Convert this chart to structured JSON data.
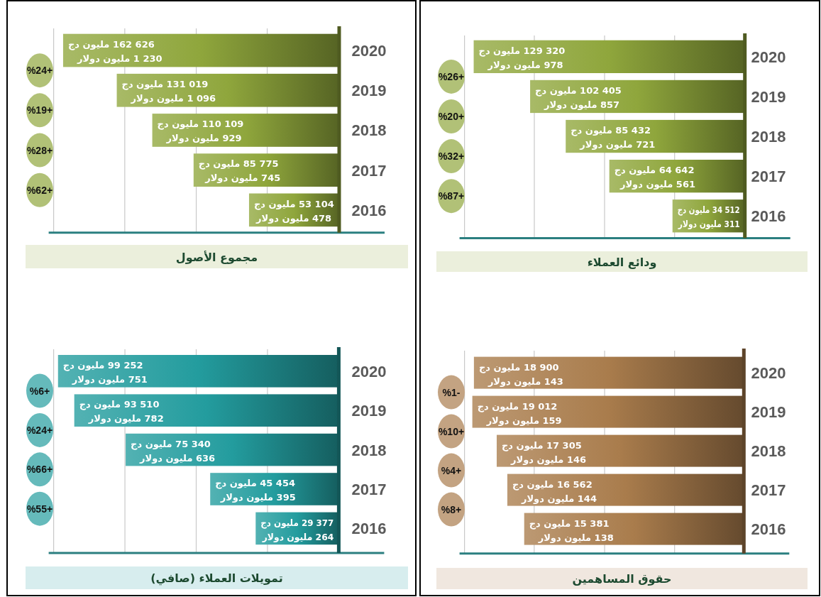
{
  "chart_data": [
    {
      "type": "bar",
      "orientation": "horizontal",
      "title": "مجموع الأصول",
      "categories": [
        "2020",
        "2019",
        "2018",
        "2017",
        "2016"
      ],
      "xlim": [
        168200,
        0
      ],
      "xticks": [
        {
          "value": 168200,
          "label": null
        },
        {
          "value": 126300,
          "label": null
        },
        {
          "value": 84200,
          "label": null
        },
        {
          "value": 42400,
          "label": null
        }
      ],
      "grid": "x",
      "tick_labels": "y",
      "series": [
        {
          "color": "#8fa63c",
          "values": [
            162626,
            131019,
            110109,
            85775,
            53104
          ],
          "value_labels": [
            "162 626 مليون دج",
            "131 019 مليون دج",
            "110 109 مليون دج",
            "85 775 مليون دج",
            "53 104 مليون دج"
          ]
        }
      ],
      "annotations": [
        "%24+",
        "%19+",
        "%28+",
        "%62+",
        {
          "text": "1 230 مليون دولار",
          "x": 162626,
          "y": "2020"
        },
        {
          "text": "1 096 مليون دولار",
          "x": 131019,
          "y": "2019"
        },
        {
          "text": "929 مليون دولار",
          "x": 110109,
          "y": "2018"
        },
        {
          "text": "745 مليون دولار",
          "x": 85775,
          "y": "2017"
        },
        {
          "text": "478 مليون دولار",
          "x": 53104,
          "y": "2016"
        }
      ]
    },
    {
      "type": "bar",
      "orientation": "horizontal",
      "title": "ودائع العملاء",
      "categories": [
        "2020",
        "2019",
        "2018",
        "2017",
        "2016"
      ],
      "xlim": [
        133700,
        0
      ],
      "xticks": [
        {
          "value": 133700,
          "label": null
        },
        {
          "value": 100400,
          "label": null
        },
        {
          "value": 66900,
          "label": null
        },
        {
          "value": 33500,
          "label": null
        }
      ],
      "grid": "x",
      "tick_labels": "y",
      "series": [
        {
          "color": "#8fa63c",
          "values": [
            129320,
            102405,
            85432,
            64642,
            34512
          ],
          "value_labels": [
            "129 320 مليون دج",
            "102 405 مليون دج",
            "85 432 مليون دج",
            "64 642 مليون دج",
            "34 512 مليون دج"
          ]
        }
      ],
      "annotations": [
        "%26+",
        "%20+",
        "%32+",
        "%87+",
        {
          "text": "978 مليون دولار",
          "x": 129320,
          "y": "2020"
        },
        {
          "text": "857 مليون دولار",
          "x": 102405,
          "y": "2019"
        },
        {
          "text": "721 مليون دولار",
          "x": 85432,
          "y": "2018"
        },
        {
          "text": "561 مليون دولار",
          "x": 64642,
          "y": "2017"
        },
        {
          "text": "311 مليون دولار",
          "x": 34512,
          "y": "2016"
        }
      ]
    },
    {
      "type": "bar",
      "orientation": "horizontal",
      "title": "تمويلات العملاء (صافي)",
      "categories": [
        "2020",
        "2019",
        "2018",
        "2017",
        "2016"
      ],
      "xlim": [
        100800,
        0
      ],
      "xticks": [
        {
          "value": 100800,
          "label": null
        },
        {
          "value": 75600,
          "label": null
        },
        {
          "value": 50400,
          "label": null
        },
        {
          "value": 25200,
          "label": null
        }
      ],
      "grid": "x",
      "tick_labels": "y",
      "series": [
        {
          "color": "#239c9e",
          "values": [
            99252,
            93510,
            75340,
            45454,
            29377
          ],
          "value_labels": [
            "99 252 مليون دج",
            "93 510 مليون دج",
            "75 340 مليون دج",
            "45 454 مليون دج",
            "29 377 مليون دج"
          ]
        }
      ],
      "annotations": [
        "%6+",
        "%24+",
        "%66+",
        "%55+",
        {
          "text": "751 مليون دولار",
          "x": 99252,
          "y": "2020"
        },
        {
          "text": "782 مليون دولار",
          "x": 93510,
          "y": "2019"
        },
        {
          "text": "636 مليون دولار",
          "x": 75340,
          "y": "2018"
        },
        {
          "text": "395 مليون دولار",
          "x": 45454,
          "y": "2017"
        },
        {
          "text": "264 مليون دولار",
          "x": 29377,
          "y": "2016"
        }
      ]
    },
    {
      "type": "bar",
      "orientation": "horizontal",
      "title": "حقوق المساهمين",
      "categories": [
        "2020",
        "2019",
        "2018",
        "2017",
        "2016"
      ],
      "xlim": [
        19560,
        0
      ],
      "xticks": [
        {
          "value": 19560,
          "label": null
        },
        {
          "value": 14680,
          "label": null
        },
        {
          "value": 9750,
          "label": null
        },
        {
          "value": 4850,
          "label": null
        }
      ],
      "grid": "x",
      "tick_labels": "y",
      "series": [
        {
          "color": "#a97c4c",
          "values": [
            18900,
            19012,
            17305,
            16562,
            15381
          ],
          "value_labels": [
            "18 900 مليون دج",
            "19 012 مليون دج",
            "17 305 مليون دج",
            "16 562 مليون دج",
            "15 381 مليون دج"
          ]
        }
      ],
      "annotations": [
        "%1-",
        "%10+",
        "%4+",
        "%8+",
        {
          "text": "143 مليون دولار",
          "x": 18900,
          "y": "2020"
        },
        {
          "text": "159 مليون دولار",
          "x": 19012,
          "y": "2019"
        },
        {
          "text": "146 مليون دولار",
          "x": 17305,
          "y": "2018"
        },
        {
          "text": "144 مليون دولار",
          "x": 16562,
          "y": "2017"
        },
        {
          "text": "138 مليون دولار",
          "x": 15381,
          "y": "2016"
        }
      ]
    }
  ]
}
